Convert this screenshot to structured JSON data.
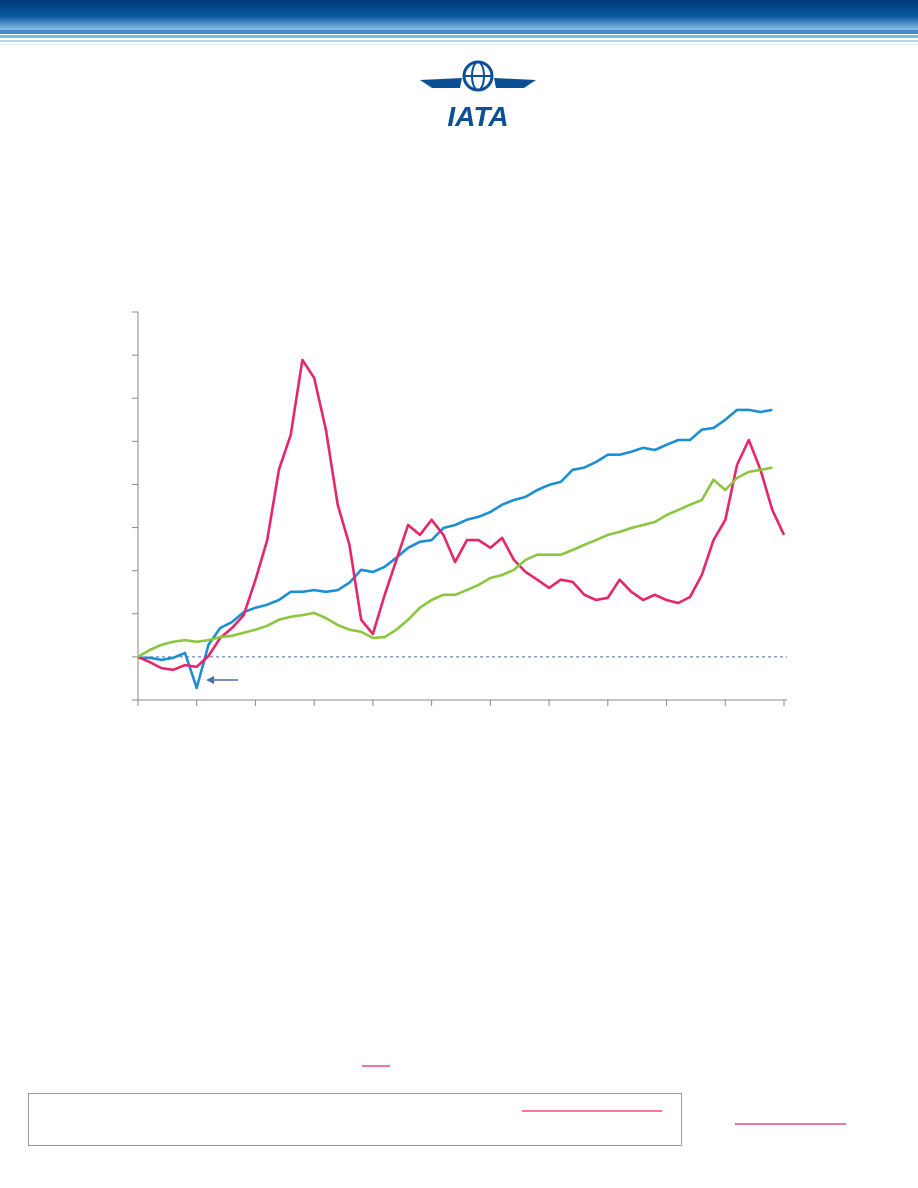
{
  "logo": "IATA",
  "chart_data": {
    "type": "line",
    "x": [
      0,
      2,
      4,
      6,
      8,
      10,
      12,
      14,
      16,
      18,
      20,
      22,
      24,
      26,
      28,
      30,
      32,
      34,
      36,
      38,
      40,
      42,
      44,
      46,
      48,
      50,
      52,
      54,
      56,
      58,
      60,
      62,
      64,
      66,
      68,
      70,
      72,
      74,
      76,
      78,
      80,
      82,
      84,
      86,
      88,
      90,
      92,
      94,
      96,
      98,
      100,
      102,
      104,
      106,
      108,
      110
    ],
    "xlim": [
      0,
      110
    ],
    "xticks": [
      0,
      10,
      20,
      30,
      40,
      50,
      60,
      70,
      80,
      90,
      100,
      110
    ],
    "ylim": [
      -1,
      8
    ],
    "yticks": [
      -1,
      0,
      1,
      2,
      3,
      4,
      5,
      6,
      7,
      8
    ],
    "hline": 0,
    "series": [
      {
        "color": "#1b8fd2",
        "values": [
          -0.02,
          -0.02,
          -0.07,
          -0.02,
          0.09,
          -0.72,
          0.28,
          0.67,
          0.81,
          1.04,
          1.14,
          1.21,
          1.32,
          1.51,
          1.51,
          1.55,
          1.51,
          1.55,
          1.72,
          2.02,
          1.97,
          2.09,
          2.3,
          2.53,
          2.67,
          2.71,
          2.99,
          3.06,
          3.18,
          3.25,
          3.36,
          3.53,
          3.64,
          3.71,
          3.87,
          3.99,
          4.06,
          4.34,
          4.39,
          4.52,
          4.69,
          4.69,
          4.76,
          4.85,
          4.8,
          4.92,
          5.03,
          5.03,
          5.27,
          5.31,
          5.5,
          5.73,
          5.73,
          5.68,
          5.73,
          null
        ]
      },
      {
        "color": "#e5266b",
        "values": [
          0,
          -0.12,
          -0.26,
          -0.3,
          -0.19,
          -0.23,
          0.02,
          0.44,
          0.67,
          0.97,
          1.79,
          2.71,
          4.34,
          5.15,
          6.89,
          6.47,
          5.27,
          3.53,
          2.6,
          0.86,
          0.53,
          1.44,
          2.25,
          3.06,
          2.83,
          3.18,
          2.83,
          2.2,
          2.71,
          2.71,
          2.53,
          2.76,
          2.25,
          1.97,
          1.79,
          1.6,
          1.79,
          1.74,
          1.44,
          1.32,
          1.37,
          1.79,
          1.51,
          1.32,
          1.44,
          1.32,
          1.25,
          1.39,
          1.9,
          2.71,
          3.18,
          4.45,
          5.03,
          4.34,
          3.41,
          2.83
        ]
      },
      {
        "color": "#8cc63f",
        "values": [
          0,
          0.16,
          0.28,
          0.35,
          0.39,
          0.35,
          0.39,
          0.46,
          0.49,
          0.56,
          0.63,
          0.72,
          0.86,
          0.93,
          0.97,
          1.02,
          0.9,
          0.74,
          0.63,
          0.58,
          0.44,
          0.46,
          0.63,
          0.86,
          1.14,
          1.32,
          1.44,
          1.44,
          1.55,
          1.67,
          1.83,
          1.9,
          2.02,
          2.25,
          2.37,
          2.37,
          2.37,
          2.48,
          2.6,
          2.71,
          2.83,
          2.9,
          2.99,
          3.06,
          3.13,
          3.29,
          3.41,
          3.53,
          3.64,
          4.11,
          3.87,
          4.15,
          4.29,
          4.34,
          4.39,
          null
        ]
      }
    ]
  }
}
